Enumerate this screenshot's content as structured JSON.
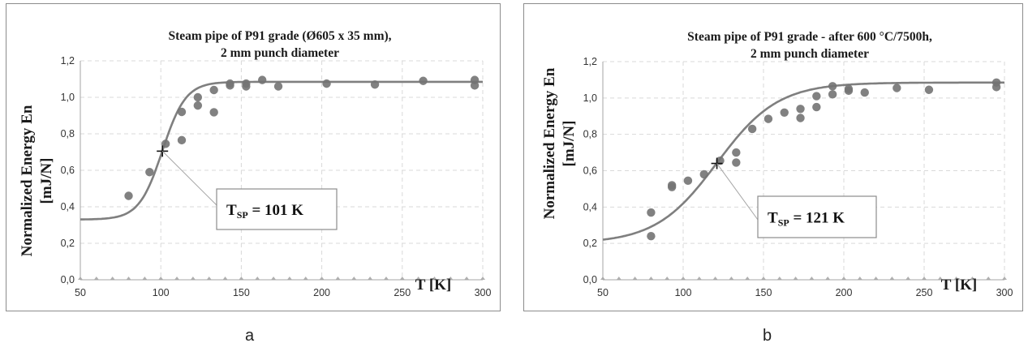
{
  "chart_data": [
    {
      "type": "scatter",
      "panel_label": "a",
      "title": "Steam pipe of P91 grade (Ø605 x 35 mm),",
      "subtitle": "2 mm punch diameter",
      "xlabel": "T [K]",
      "ylabel": "Normalized Energy En",
      "ylabel_unit": "[mJ/N]",
      "xlim": [
        50,
        300
      ],
      "ylim": [
        0.0,
        1.2
      ],
      "xticks": [
        "50",
        "100",
        "150",
        "200",
        "250",
        "300"
      ],
      "yticks": [
        "0,0",
        "0,2",
        "0,4",
        "0,6",
        "0,8",
        "1,0",
        "1,2"
      ],
      "grid": true,
      "fit_curve": {
        "lower_shelf": 0.33,
        "upper_shelf": 1.085,
        "t0": 101,
        "c": 14.5,
        "x": [
          50,
          300
        ]
      },
      "points": {
        "x": [
          80,
          93,
          103,
          113,
          113,
          123,
          123,
          133,
          133,
          143,
          143,
          153,
          153,
          163,
          173,
          203,
          233,
          263,
          295,
          295
        ],
        "y": [
          0.46,
          0.59,
          0.745,
          0.92,
          0.765,
          0.955,
          1.0,
          1.04,
          0.918,
          1.075,
          1.065,
          1.075,
          1.06,
          1.095,
          1.06,
          1.075,
          1.07,
          1.09,
          1.095,
          1.065
        ]
      },
      "transition": {
        "x": 101,
        "y": 0.705,
        "label": "T",
        "label_sub": "SP",
        "label_value": " = 101 K"
      },
      "panel_caption": "a"
    },
    {
      "type": "scatter",
      "panel_label": "b",
      "title": "Steam pipe of P91 grade - after 600 °C/7500h,",
      "subtitle": "2 mm punch diameter",
      "xlabel": "T [K]",
      "ylabel": "Normalized Energy En",
      "ylabel_unit": "[mJ/N]",
      "xlim": [
        50,
        300
      ],
      "ylim": [
        0.0,
        1.2
      ],
      "xticks": [
        "50",
        "100",
        "150",
        "200",
        "250",
        "300"
      ],
      "yticks": [
        "0,0",
        "0,2",
        "0,4",
        "0,6",
        "0,8",
        "1,0",
        "1,2"
      ],
      "grid": true,
      "fit_curve": {
        "lower_shelf": 0.2,
        "upper_shelf": 1.085,
        "t0": 121,
        "c": 38,
        "x": [
          50,
          300
        ]
      },
      "points": {
        "x": [
          80,
          80,
          93,
          93,
          103,
          113,
          123,
          133,
          133,
          143,
          153,
          163,
          173,
          173,
          183,
          183,
          193,
          193,
          203,
          203,
          213,
          233,
          253,
          295,
          295
        ],
        "y": [
          0.37,
          0.24,
          0.51,
          0.52,
          0.545,
          0.58,
          0.655,
          0.7,
          0.645,
          0.83,
          0.885,
          0.92,
          0.94,
          0.89,
          1.01,
          0.95,
          1.065,
          1.02,
          1.04,
          1.05,
          1.03,
          1.055,
          1.045,
          1.085,
          1.06
        ]
      },
      "transition": {
        "x": 121,
        "y": 0.64,
        "label": "T",
        "label_sub": "SP",
        "label_value": " = 121 K"
      },
      "panel_caption": "b"
    }
  ]
}
